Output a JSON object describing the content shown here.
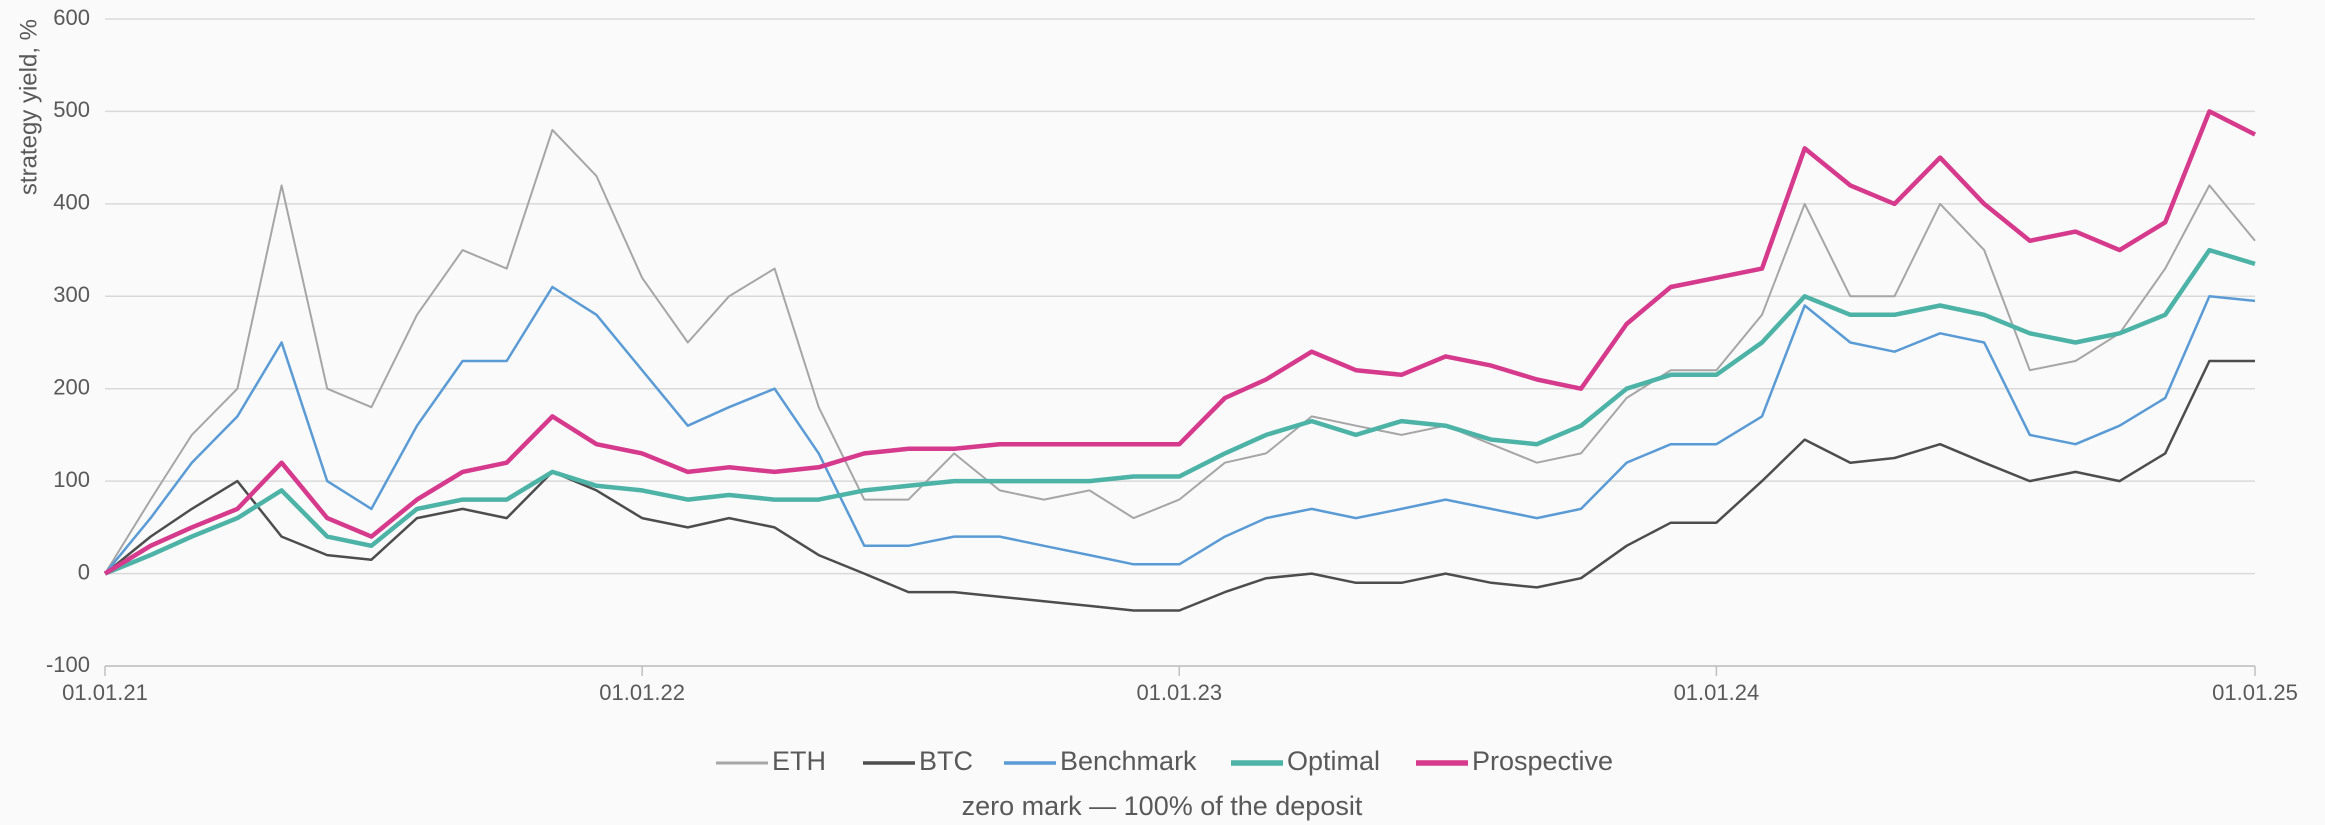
{
  "chart_data": {
    "type": "line",
    "ylabel": "strategy yield, %",
    "caption": "zero mark — 100% of the deposit",
    "x": [
      "2021-01-01",
      "2021-02-01",
      "2021-03-01",
      "2021-04-01",
      "2021-05-01",
      "2021-06-01",
      "2021-07-01",
      "2021-08-01",
      "2021-09-01",
      "2021-10-01",
      "2021-11-01",
      "2021-12-01",
      "2022-01-01",
      "2022-02-01",
      "2022-03-01",
      "2022-04-01",
      "2022-05-01",
      "2022-06-01",
      "2022-07-01",
      "2022-08-01",
      "2022-09-01",
      "2022-10-01",
      "2022-11-01",
      "2022-12-01",
      "2023-01-01",
      "2023-02-01",
      "2023-03-01",
      "2023-04-01",
      "2023-05-01",
      "2023-06-01",
      "2023-07-01",
      "2023-08-01",
      "2023-09-01",
      "2023-10-01",
      "2023-11-01",
      "2023-12-01",
      "2024-01-01",
      "2024-02-01",
      "2024-03-01",
      "2024-04-01",
      "2024-05-01",
      "2024-06-01",
      "2024-07-01",
      "2024-08-01",
      "2024-09-01",
      "2024-10-01",
      "2024-11-01",
      "2024-12-01",
      "2025-01-01"
    ],
    "series": [
      {
        "name": "ETH",
        "color": "#a6a6a6",
        "values": [
          0,
          80,
          150,
          200,
          420,
          200,
          180,
          280,
          350,
          330,
          480,
          430,
          320,
          250,
          300,
          330,
          180,
          80,
          80,
          130,
          90,
          80,
          90,
          60,
          80,
          120,
          130,
          170,
          160,
          150,
          160,
          140,
          120,
          130,
          190,
          220,
          220,
          280,
          400,
          300,
          300,
          400,
          350,
          220,
          230,
          260,
          330,
          420,
          360
        ]
      },
      {
        "name": "BTC",
        "color": "#4d4d4d",
        "values": [
          0,
          40,
          70,
          100,
          40,
          20,
          15,
          60,
          70,
          60,
          110,
          90,
          60,
          50,
          60,
          50,
          20,
          0,
          -20,
          -20,
          -25,
          -30,
          -35,
          -40,
          -40,
          -20,
          -5,
          0,
          -10,
          -10,
          0,
          -10,
          -15,
          -5,
          30,
          55,
          55,
          100,
          145,
          120,
          125,
          140,
          120,
          100,
          110,
          100,
          130,
          230,
          230
        ]
      },
      {
        "name": "Benchmark",
        "color": "#5b9bd5",
        "values": [
          0,
          60,
          120,
          170,
          250,
          100,
          70,
          160,
          230,
          230,
          310,
          280,
          220,
          160,
          180,
          200,
          130,
          30,
          30,
          40,
          40,
          30,
          20,
          10,
          10,
          40,
          60,
          70,
          60,
          70,
          80,
          70,
          60,
          70,
          120,
          140,
          140,
          170,
          290,
          250,
          240,
          260,
          250,
          150,
          140,
          160,
          190,
          300,
          295
        ]
      },
      {
        "name": "Optimal",
        "color": "#4db3a6",
        "values": [
          0,
          20,
          40,
          60,
          90,
          40,
          30,
          70,
          80,
          80,
          110,
          95,
          90,
          80,
          85,
          80,
          80,
          90,
          95,
          100,
          100,
          100,
          100,
          105,
          105,
          130,
          150,
          165,
          150,
          165,
          160,
          145,
          140,
          160,
          200,
          215,
          215,
          250,
          300,
          280,
          280,
          290,
          280,
          260,
          250,
          260,
          280,
          350,
          335
        ]
      },
      {
        "name": "Prospective",
        "color": "#d63a8c",
        "values": [
          0,
          30,
          50,
          70,
          120,
          60,
          40,
          80,
          110,
          120,
          170,
          140,
          130,
          110,
          115,
          110,
          115,
          130,
          135,
          135,
          140,
          140,
          140,
          140,
          140,
          190,
          210,
          240,
          220,
          215,
          235,
          225,
          210,
          200,
          270,
          310,
          320,
          330,
          460,
          420,
          400,
          450,
          400,
          360,
          370,
          350,
          380,
          500,
          475
        ]
      }
    ],
    "xlim": [
      "2021-01-01",
      "2025-01-01"
    ],
    "xticks": [
      {
        "value": "2021-01-01",
        "label": "01.01.21"
      },
      {
        "value": "2022-01-01",
        "label": "01.01.22"
      },
      {
        "value": "2023-01-01",
        "label": "01.01.23"
      },
      {
        "value": "2024-01-01",
        "label": "01.01.24"
      },
      {
        "value": "2025-01-01",
        "label": "01.01.25"
      }
    ],
    "ylim": [
      -100,
      600
    ],
    "yticks": [
      -100,
      0,
      100,
      200,
      300,
      400,
      500,
      600
    ],
    "grid": true,
    "legend": "bottom"
  }
}
